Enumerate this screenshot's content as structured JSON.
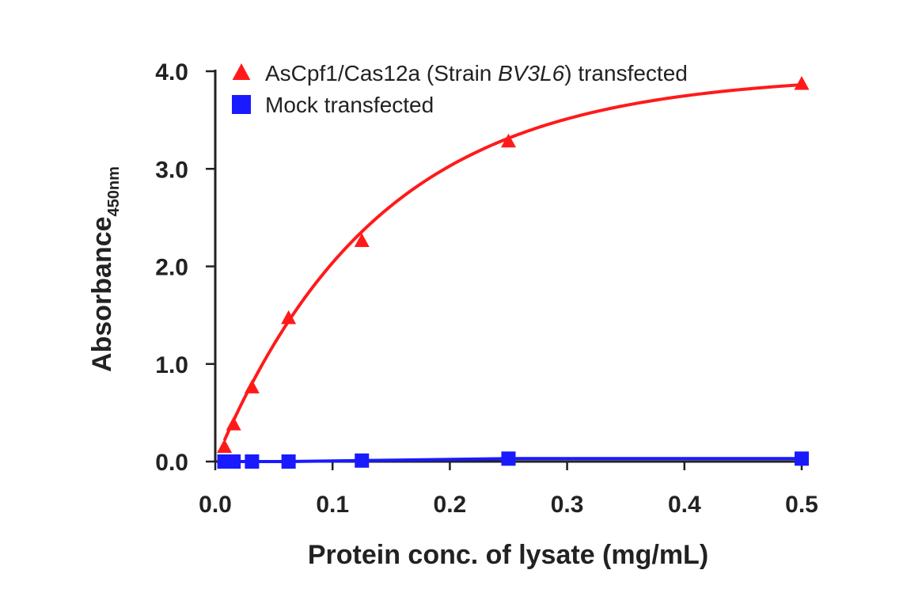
{
  "chart_data": {
    "type": "scatter",
    "title": "",
    "xlabel": "Protein conc. of lysate (mg/mL)",
    "ylabel_main": "Absorbance",
    "ylabel_sub": "450nm",
    "xlim": [
      0,
      0.5
    ],
    "ylim": [
      0,
      4.0
    ],
    "xticks": [
      {
        "value": 0,
        "label": "0.0"
      },
      {
        "value": 0.1,
        "label": "0.1"
      },
      {
        "value": 0.2,
        "label": "0.2"
      },
      {
        "value": 0.3,
        "label": "0.3"
      },
      {
        "value": 0.4,
        "label": "0.4"
      },
      {
        "value": 0.5,
        "label": "0.5"
      }
    ],
    "yticks": [
      {
        "value": 0,
        "label": "0.0"
      },
      {
        "value": 1,
        "label": "1.0"
      },
      {
        "value": 2,
        "label": "2.0"
      },
      {
        "value": 3,
        "label": "3.0"
      },
      {
        "value": 4,
        "label": "4.0"
      }
    ],
    "grid": false,
    "legend_position": "top-left",
    "series": [
      {
        "name": "AsCpf1/Cas12a (Strain BV3L6) transfected",
        "legend_parts": [
          {
            "text": "AsCpf1/Cas12a (Strain ",
            "italic": false
          },
          {
            "text": "BV3L6",
            "italic": true
          },
          {
            "text": ") transfected",
            "italic": false
          }
        ],
        "marker": "triangle",
        "color": "#ff1a1a",
        "curve": "saturation",
        "curve_params": {
          "a": 3.97,
          "k": 7.2
        },
        "x": [
          0.0078,
          0.0156,
          0.0313,
          0.0625,
          0.125,
          0.25,
          0.5
        ],
        "y": [
          0.15,
          0.38,
          0.76,
          1.47,
          2.26,
          3.28,
          3.87
        ]
      },
      {
        "name": "Mock transfected",
        "legend_parts": [
          {
            "text": "Mock transfected",
            "italic": false
          }
        ],
        "marker": "square",
        "color": "#1a1aff",
        "curve": "linear",
        "x": [
          0.0078,
          0.0156,
          0.0313,
          0.0625,
          0.125,
          0.25,
          0.5
        ],
        "y": [
          0.0,
          0.0,
          0.0,
          0.0,
          0.01,
          0.03,
          0.03
        ]
      }
    ]
  }
}
